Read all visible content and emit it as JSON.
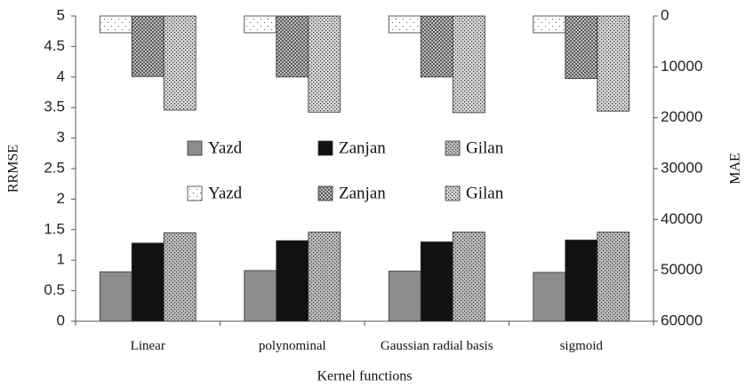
{
  "chart_data": {
    "type": "bar",
    "categories": [
      "Linear",
      "polynominal",
      "Gaussian radial basis",
      "sigmoid"
    ],
    "xlabel": "Kernel functions",
    "ylabel": "RRMSE",
    "y2label": "MAE",
    "ylim": [
      0,
      5
    ],
    "yticks": [
      0,
      0.5,
      1,
      1.5,
      2,
      2.5,
      3,
      3.5,
      4,
      4.5,
      5
    ],
    "y2lim": [
      60000,
      0
    ],
    "y2ticks": [
      0,
      10000,
      20000,
      30000,
      40000,
      50000,
      60000
    ],
    "series": [
      {
        "name": "Yazd",
        "color": "#8c8c8c",
        "pattern": "solid",
        "values": [
          0.81,
          0.83,
          0.82,
          0.8
        ]
      },
      {
        "name": "Zanjan",
        "color": "#111111",
        "pattern": "solid",
        "values": [
          1.28,
          1.32,
          1.3,
          1.33
        ]
      },
      {
        "name": "Gilan",
        "color": "#bdbdbd",
        "pattern": "dense-dots",
        "values": [
          1.45,
          1.46,
          1.46,
          1.46
        ]
      },
      {
        "name": "Yazd",
        "color": "#ffffff",
        "pattern": "sparse-dots",
        "axis": "y2",
        "values": [
          3300,
          3300,
          3300,
          3300
        ]
      },
      {
        "name": "Zanjan",
        "color": "#e0e0e0",
        "pattern": "crosshatch",
        "axis": "y2",
        "values": [
          11900,
          12000,
          12000,
          12300
        ]
      },
      {
        "name": "Gilan",
        "color": "#d6d6d6",
        "pattern": "dense-dots",
        "axis": "y2",
        "values": [
          18500,
          18900,
          19000,
          18700
        ]
      }
    ]
  }
}
